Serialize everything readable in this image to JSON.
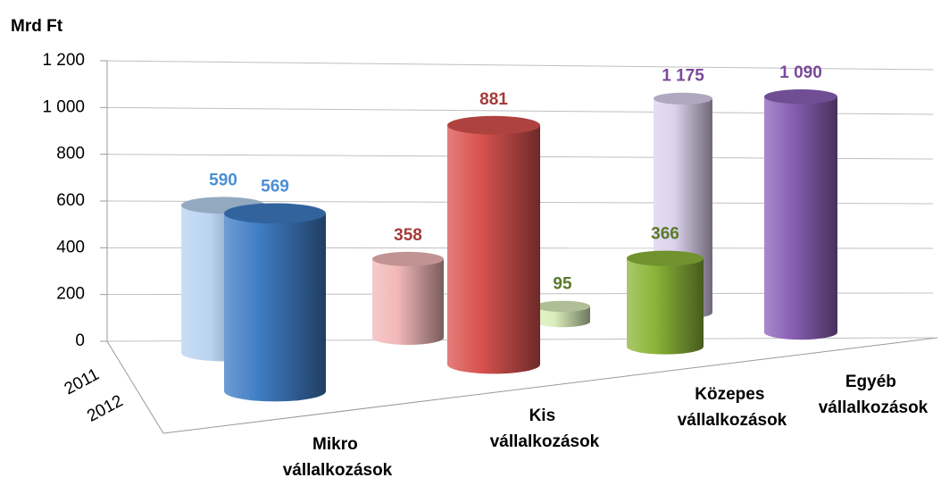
{
  "chart_data": {
    "type": "bar3d",
    "y_label": "Mrd Ft",
    "categories": [
      "Mikro vállalkozások",
      "Kis vállalkozások",
      "Közepes vállalkozások",
      "Egyéb vállalkozások"
    ],
    "series": [
      {
        "name": "2011",
        "colors": [
          "#b8d3f0",
          "#f2b8b8",
          "#dbeebc",
          "#dcd2ee"
        ],
        "values": [
          590,
          358,
          95,
          1175
        ],
        "value_labels": [
          "590",
          "358",
          "95",
          "1 175"
        ]
      },
      {
        "name": "2012",
        "colors": [
          "#3f7cc4",
          "#d9534f",
          "#8db63a",
          "#8c62b8"
        ],
        "values": [
          569,
          881,
          366,
          1090
        ],
        "value_labels": [
          "569",
          "881",
          "366",
          "1 090"
        ]
      }
    ],
    "label_colors": [
      "#4a8fd6",
      "#a63a3a",
      "#5a7a2a",
      "#7a4a9a"
    ],
    "ylim": [
      0,
      1200
    ],
    "yticks": [
      0,
      200,
      400,
      600,
      800,
      {
        "value": 1000,
        "label": "1 000"
      },
      {
        "value": 1200,
        "label": "1 200"
      }
    ],
    "grid": true
  }
}
